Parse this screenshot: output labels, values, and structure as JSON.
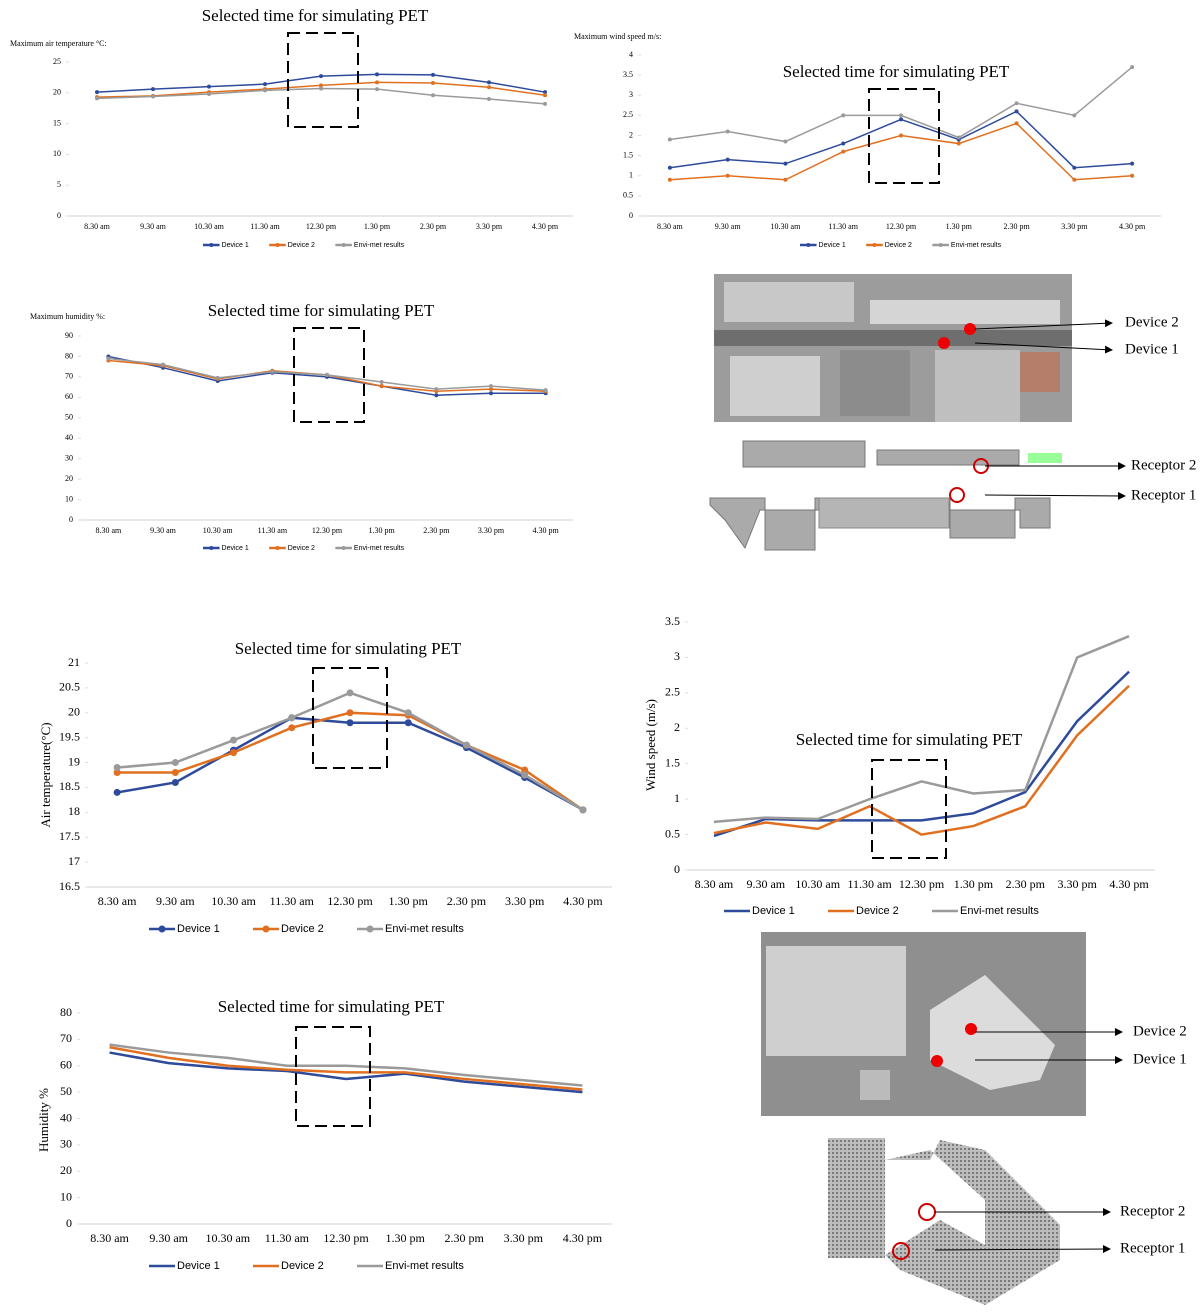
{
  "chart_data": [
    {
      "type": "line",
      "annotation": "Selected time for simulating PET",
      "y_label": "Maximum air temperature °C:",
      "categories": [
        "8.30 am",
        "9.30 am",
        "10.30 am",
        "11.30 am",
        "12.30 pm",
        "1.30 pm",
        "2.30 pm",
        "3.30 pm",
        "4.30 pm"
      ],
      "series": [
        {
          "name": "Device 1",
          "color": "#2e4b9b",
          "values": [
            20.1,
            20.6,
            21,
            21.4,
            22.7,
            23,
            22.9,
            21.7,
            20.1
          ]
        },
        {
          "name": "Device 2",
          "color": "#e07020",
          "values": [
            19.3,
            19.5,
            20.1,
            20.6,
            21.2,
            21.7,
            21.6,
            20.9,
            19.6
          ]
        },
        {
          "name": "Envi-met results",
          "color": "#9a9a9a",
          "values": [
            19.1,
            19.4,
            19.8,
            20.4,
            20.7,
            20.6,
            19.6,
            19,
            18.2
          ]
        }
      ],
      "ylim": [
        0,
        25
      ],
      "yticks": [
        0,
        5,
        10,
        15,
        20,
        25
      ],
      "markers": true
    },
    {
      "type": "line",
      "annotation": "Selected time for simulating PET",
      "y_label": "Maximum wind speed m/s:",
      "categories": [
        "8.30 am",
        "9.30 am",
        "10.30 am",
        "11.30 am",
        "12.30 pm",
        "1.30 pm",
        "2.30 pm",
        "3.30 pm",
        "4.30 pm"
      ],
      "series": [
        {
          "name": "Device 1",
          "color": "#2e4b9b",
          "values": [
            1.2,
            1.4,
            1.3,
            1.8,
            2.4,
            1.9,
            2.6,
            1.2,
            1.3
          ]
        },
        {
          "name": "Device 2",
          "color": "#e07020",
          "values": [
            0.9,
            1.0,
            0.9,
            1.6,
            2.0,
            1.8,
            2.3,
            0.9,
            1.0
          ]
        },
        {
          "name": "Envi-met results",
          "color": "#9a9a9a",
          "values": [
            1.9,
            2.1,
            1.85,
            2.5,
            2.5,
            1.95,
            2.8,
            2.5,
            3.7
          ]
        }
      ],
      "ylim": [
        0,
        4
      ],
      "yticks": [
        0,
        0.5,
        1,
        1.5,
        2,
        2.5,
        3,
        3.5,
        4
      ],
      "markers": true
    },
    {
      "type": "line",
      "annotation": "Selected time for simulating PET",
      "y_label": "Maximum  humidity  %:",
      "categories": [
        "8.30 am",
        "9.30 am",
        "10.30 am",
        "11.30 am",
        "12.30 pm",
        "1.30 pm",
        "2.30 pm",
        "3.30 pm",
        "4.30 pm"
      ],
      "series": [
        {
          "name": "Device 1",
          "color": "#2e4b9b",
          "values": [
            80,
            74.5,
            68,
            72,
            70,
            65.5,
            61,
            62,
            62
          ]
        },
        {
          "name": "Device 2",
          "color": "#e07020",
          "values": [
            78,
            75.5,
            69,
            73,
            71,
            65.5,
            63,
            64,
            63
          ]
        },
        {
          "name": "Envi-met results",
          "color": "#9a9a9a",
          "values": [
            79,
            76,
            69.5,
            72.5,
            71,
            67.5,
            64,
            65.5,
            63.5
          ]
        }
      ],
      "ylim": [
        0,
        90
      ],
      "yticks": [
        0,
        10,
        20,
        30,
        40,
        50,
        60,
        70,
        80,
        90
      ],
      "markers": true
    },
    {
      "type": "line",
      "annotation": "Selected time for simulating PET",
      "y_label": "Air temperature(°C)",
      "categories": [
        "8.30 am",
        "9.30 am",
        "10.30 am",
        "11.30 am",
        "12.30 pm",
        "1.30 pm",
        "2.30 pm",
        "3.30 pm",
        "4.30 pm"
      ],
      "series": [
        {
          "name": "Device 1",
          "color": "#2e4b9b",
          "values": [
            18.4,
            18.6,
            19.25,
            19.9,
            19.8,
            19.8,
            19.3,
            18.7,
            18.05
          ]
        },
        {
          "name": "Device 2",
          "color": "#e07020",
          "values": [
            18.8,
            18.8,
            19.2,
            19.7,
            20.0,
            19.95,
            19.35,
            18.85,
            18.05
          ]
        },
        {
          "name": "Envi-met results",
          "color": "#9a9a9a",
          "values": [
            18.9,
            19.0,
            19.45,
            19.9,
            20.4,
            20.0,
            19.35,
            18.75,
            18.05
          ]
        }
      ],
      "ylim": [
        16.5,
        21
      ],
      "yticks": [
        16.5,
        17,
        17.5,
        18,
        18.5,
        19,
        19.5,
        20,
        20.5,
        21
      ],
      "markers": true
    },
    {
      "type": "line",
      "annotation": "Selected time for simulating PET",
      "y_label": "Wind speed (m/s)",
      "categories": [
        "8.30 am",
        "9.30 am",
        "10.30 am",
        "11.30 am",
        "12.30 pm",
        "1.30 pm",
        "2.30 pm",
        "3.30 pm",
        "4.30 pm"
      ],
      "series": [
        {
          "name": "Device 1",
          "color": "#2e4b9b",
          "values": [
            0.48,
            0.72,
            0.7,
            0.7,
            0.7,
            0.8,
            1.1,
            2.1,
            2.8
          ]
        },
        {
          "name": "Device 2",
          "color": "#e07020",
          "values": [
            0.52,
            0.67,
            0.58,
            0.9,
            0.5,
            0.62,
            0.9,
            1.9,
            2.6
          ]
        },
        {
          "name": "Envi-met results",
          "color": "#9a9a9a",
          "values": [
            0.68,
            0.74,
            0.72,
            1.0,
            1.25,
            1.08,
            1.13,
            3.0,
            3.3
          ]
        }
      ],
      "ylim": [
        0,
        3.5
      ],
      "yticks": [
        0,
        0.5,
        1,
        1.5,
        2,
        2.5,
        3,
        3.5
      ],
      "markers": false
    },
    {
      "type": "line",
      "annotation": "Selected time for simulating PET",
      "y_label": "Humidity %",
      "categories": [
        "8.30 am",
        "9.30 am",
        "10.30 am",
        "11.30 am",
        "12.30 pm",
        "1.30 pm",
        "2.30 pm",
        "3.30 pm",
        "4.30 pm"
      ],
      "series": [
        {
          "name": "Device 1",
          "color": "#2e4b9b",
          "values": [
            65,
            61,
            59,
            58,
            55,
            57,
            54,
            52,
            50
          ]
        },
        {
          "name": "Device 2",
          "color": "#e07020",
          "values": [
            67,
            63,
            60,
            58.5,
            57.5,
            57.5,
            55,
            53,
            51
          ]
        },
        {
          "name": "Envi-met results",
          "color": "#9a9a9a",
          "values": [
            68,
            65,
            63,
            60,
            60,
            59,
            56.5,
            54.5,
            52.5
          ]
        }
      ],
      "ylim": [
        0,
        80
      ],
      "yticks": [
        0,
        10,
        20,
        30,
        40,
        50,
        60,
        70,
        80
      ],
      "markers": false
    }
  ],
  "maps": [
    {
      "labels": [
        "Device 2",
        "Device 1"
      ]
    },
    {
      "labels": [
        "Receptor 2",
        "Receptor 1"
      ]
    },
    {
      "labels": [
        "Device 2",
        "Device 1"
      ]
    },
    {
      "labels": [
        "Receptor 2",
        "Receptor 1"
      ]
    }
  ]
}
